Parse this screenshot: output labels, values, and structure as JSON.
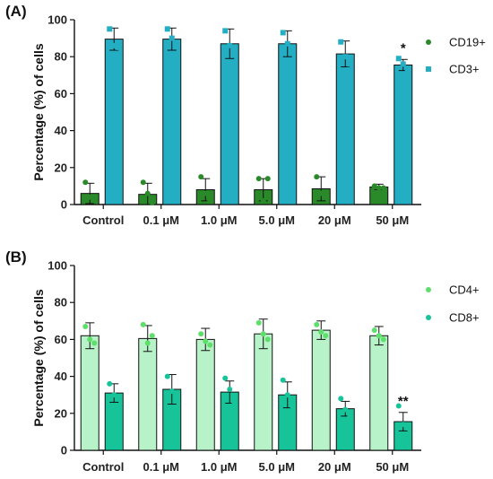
{
  "chart_data": [
    {
      "panel_label": "(A)",
      "type": "bar",
      "ylabel": "Percentage (%) of cells",
      "ylim": [
        0,
        100
      ],
      "yticks": [
        "0",
        "20",
        "40",
        "60",
        "80",
        "100"
      ],
      "categories": [
        "Control",
        "0.1 μM",
        "1.0 μM",
        "5.0 μM",
        "20 μM",
        "50 μM"
      ],
      "legend_position": "right",
      "series": [
        {
          "name": "CD19+",
          "color": "#2a8a2a",
          "bar_fill": "#2a8a2a",
          "marker": "circle",
          "values": [
            6,
            5.5,
            8,
            8,
            8.5,
            9.5
          ],
          "errors": [
            5.5,
            6,
            6,
            6,
            6.5,
            1.5
          ],
          "points": [
            [
              12,
              4,
              2
            ],
            [
              12,
              6,
              1
            ],
            [
              15,
              6,
              2
            ],
            [
              14,
              2,
              14
            ],
            [
              15,
              6,
              4
            ],
            [
              10,
              9,
              9
            ]
          ]
        },
        {
          "name": "CD3+",
          "color": "#23aec3",
          "bar_fill": "#23aec3",
          "marker": "square",
          "values": [
            89.5,
            89.5,
            87,
            87,
            81.5,
            75.5
          ],
          "errors": [
            6,
            6,
            8,
            7,
            7,
            3
          ],
          "points": [
            [
              95,
              86,
              85
            ],
            [
              95,
              90,
              86
            ],
            [
              94,
              86,
              84
            ],
            [
              93,
              87,
              85
            ],
            [
              88,
              80,
              76
            ],
            [
              79,
              76,
              73
            ]
          ]
        }
      ],
      "annotations": [
        {
          "category_index": 5,
          "series_index": 1,
          "text": "*"
        }
      ]
    },
    {
      "panel_label": "(B)",
      "type": "bar",
      "ylabel": "Percentage (%) of cells",
      "ylim": [
        0,
        100
      ],
      "yticks": [
        "0",
        "20",
        "40",
        "60",
        "80",
        "100"
      ],
      "categories": [
        "Control",
        "0.1 μM",
        "1.0 μM",
        "5.0 μM",
        "20 μM",
        "50 μM"
      ],
      "legend_position": "right",
      "series": [
        {
          "name": "CD4+",
          "color": "#5ce06a",
          "bar_fill": "#b8f2c8",
          "marker": "circle",
          "values": [
            62,
            60.5,
            60,
            63,
            65,
            62
          ],
          "errors": [
            7,
            7,
            6,
            8,
            5,
            5
          ],
          "points": [
            [
              67,
              60,
              58
            ],
            [
              68,
              58,
              62
            ],
            [
              63,
              59,
              57
            ],
            [
              69,
              63,
              60
            ],
            [
              68,
              64,
              62
            ],
            [
              65,
              62,
              60
            ]
          ]
        },
        {
          "name": "CD8+",
          "color": "#17c49a",
          "bar_fill": "#17c49a",
          "marker": "circle",
          "values": [
            31,
            33,
            31.5,
            30,
            22.5,
            15.5
          ],
          "errors": [
            5,
            8,
            6,
            7,
            4,
            5
          ],
          "points": [
            [
              36,
              30,
              28
            ],
            [
              40,
              32,
              28
            ],
            [
              39,
              33,
              26
            ],
            [
              38,
              30,
              24
            ],
            [
              28,
              22,
              18
            ],
            [
              24,
              14,
              12
            ]
          ]
        }
      ],
      "annotations": [
        {
          "category_index": 5,
          "series_index": 1,
          "text": "**"
        }
      ]
    }
  ]
}
